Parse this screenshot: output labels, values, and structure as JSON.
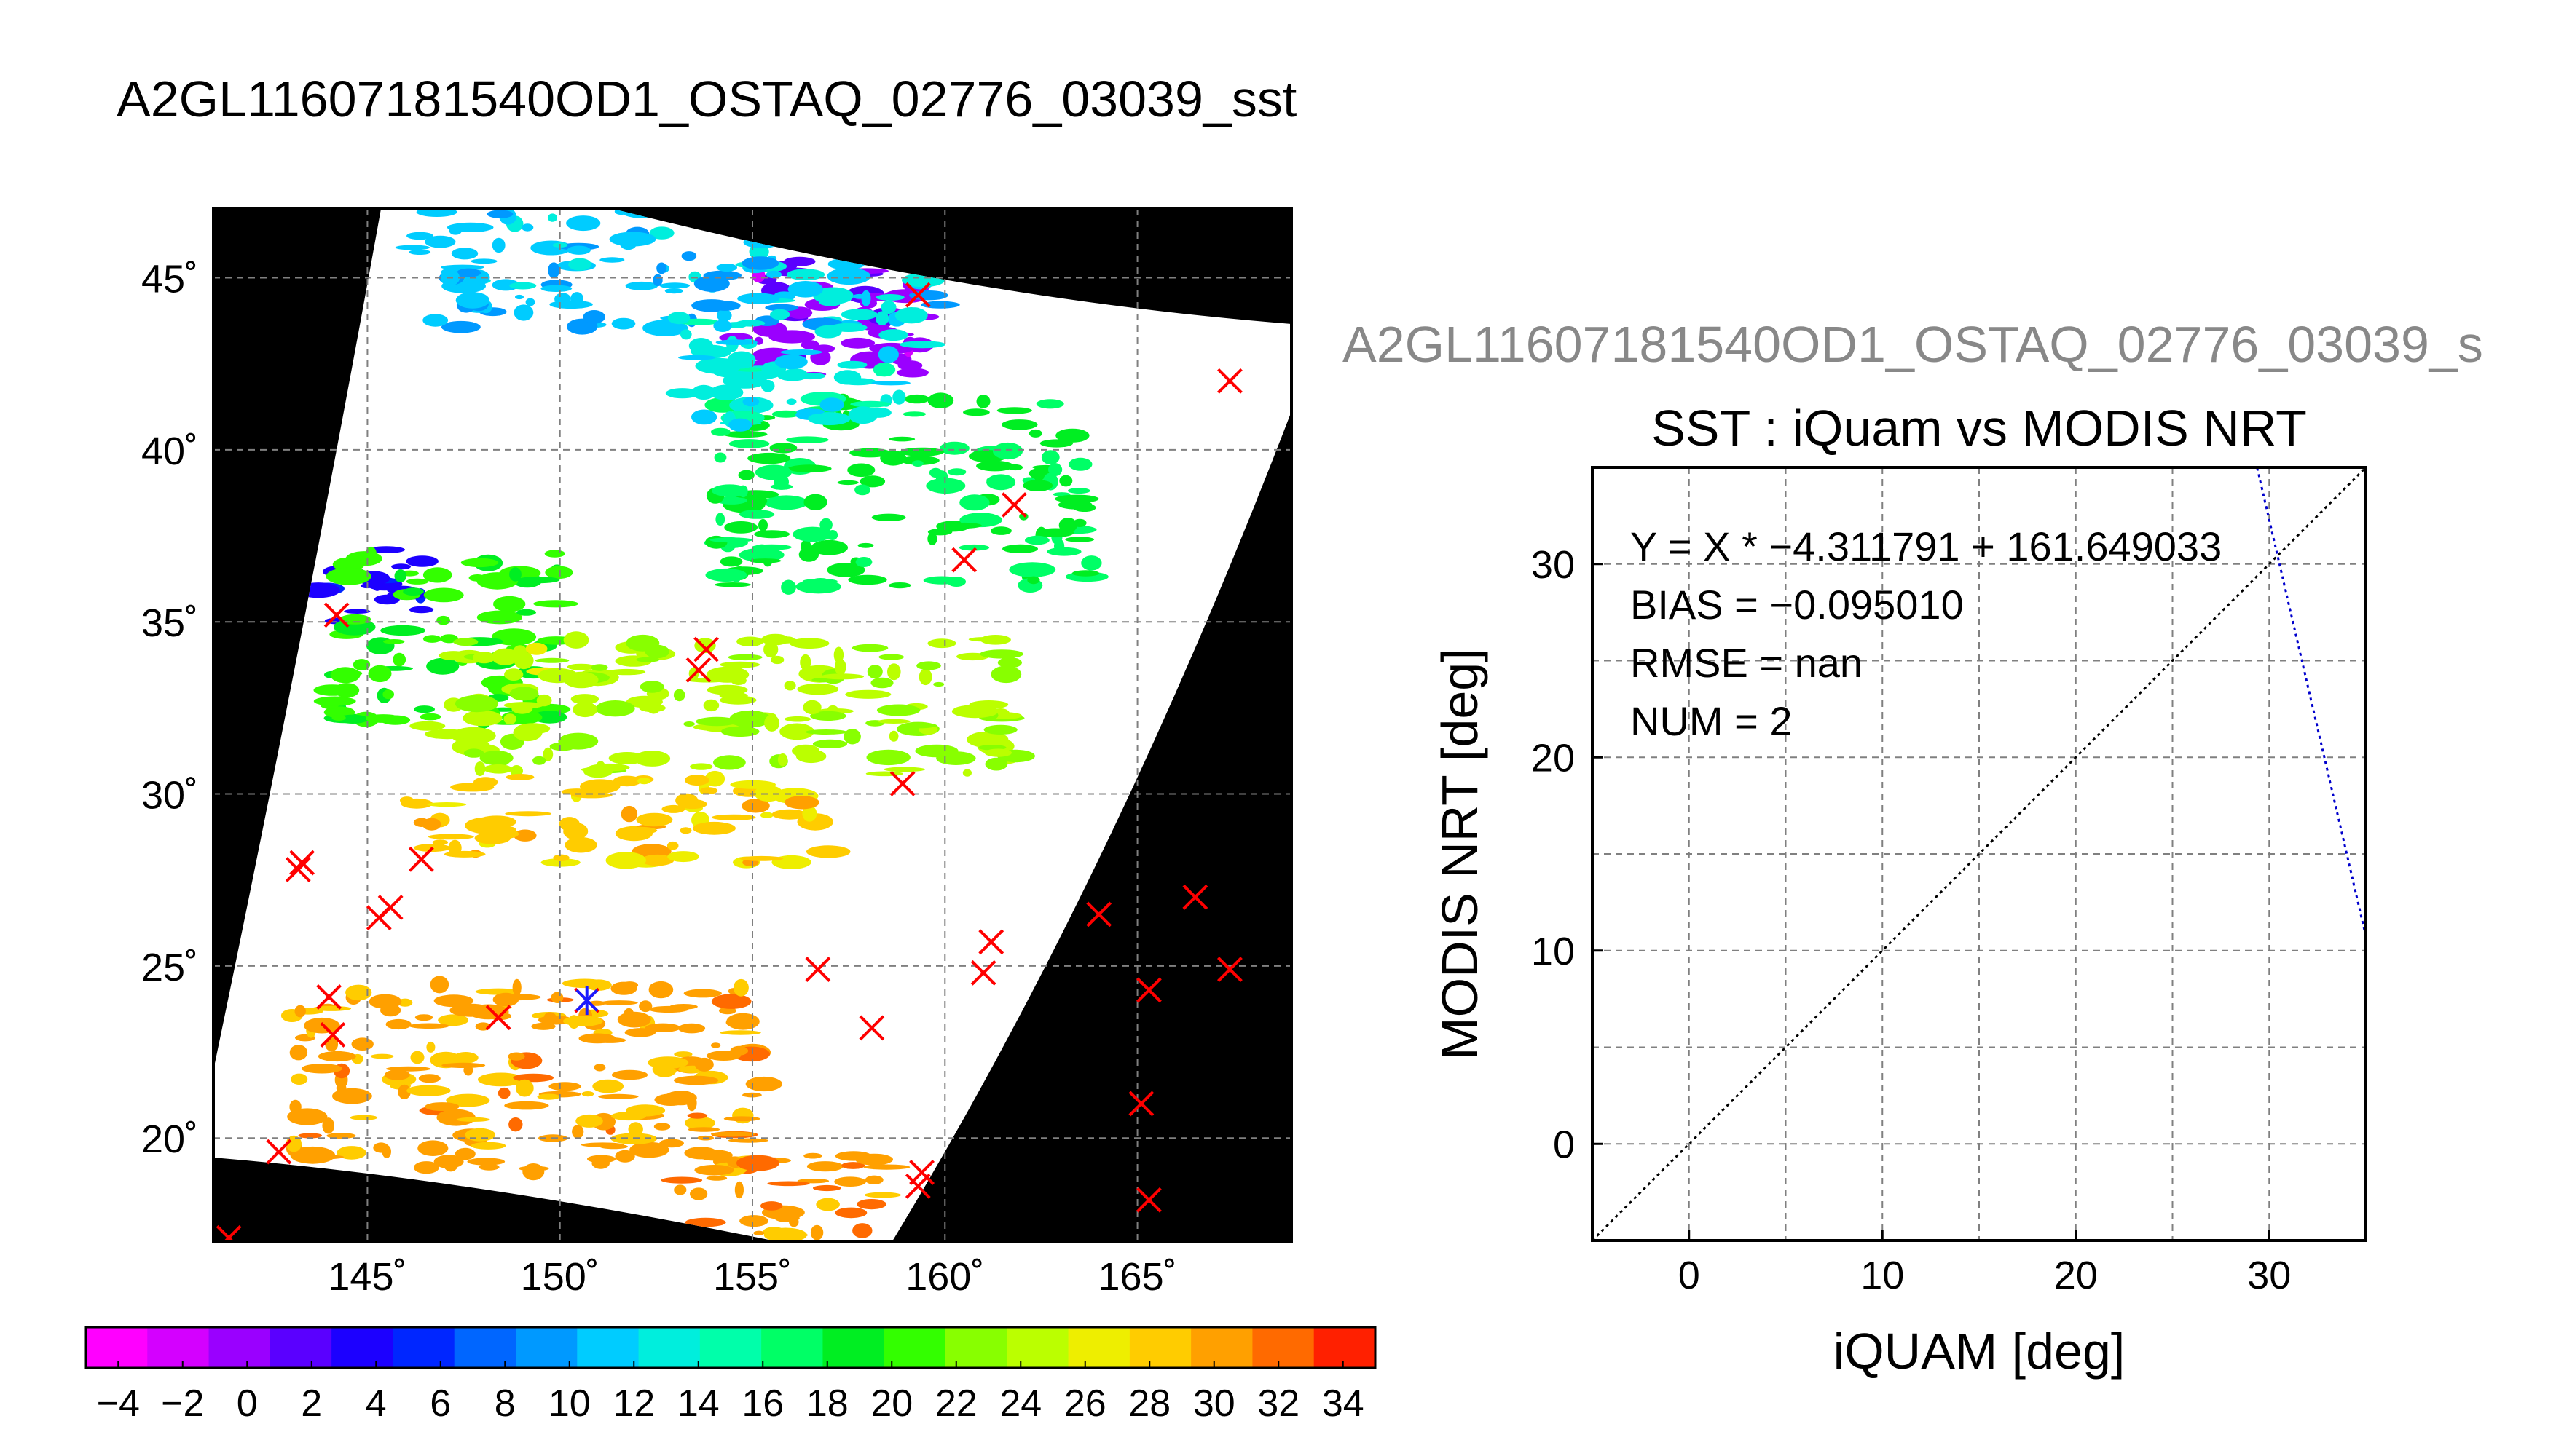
{
  "main_title": "A2GL11607181540OD1_OSTAQ_02776_03039_sst",
  "secondary_title": "A2GL11607181540OD1_OSTAQ_02776_03039_s",
  "map": {
    "lat_ticks": [
      20,
      25,
      30,
      35,
      40,
      45
    ],
    "lon_ticks": [
      145,
      150,
      155,
      160,
      165
    ],
    "lat_range": [
      17,
      47
    ],
    "lon_range": [
      141,
      169
    ],
    "degree_mark": "˚",
    "background": "#000000",
    "swath_color": "#ffffff",
    "grid": true,
    "buoy_marker_color": "#ff0000",
    "matched_marker_color": "#1a1aff",
    "buoy_markers": [
      [
        159.3,
        44.5
      ],
      [
        167.4,
        42.0
      ],
      [
        161.8,
        38.4
      ],
      [
        160.5,
        36.8
      ],
      [
        144.2,
        35.2
      ],
      [
        153.8,
        34.2
      ],
      [
        153.6,
        33.6
      ],
      [
        158.9,
        30.3
      ],
      [
        143.3,
        28.0
      ],
      [
        143.2,
        27.8
      ],
      [
        146.4,
        28.1
      ],
      [
        145.6,
        26.7
      ],
      [
        145.3,
        26.4
      ],
      [
        161.2,
        25.7
      ],
      [
        161.0,
        24.8
      ],
      [
        164.0,
        26.5
      ],
      [
        166.5,
        27.0
      ],
      [
        167.4,
        24.9
      ],
      [
        165.3,
        24.3
      ],
      [
        156.7,
        24.9
      ],
      [
        158.1,
        23.2
      ],
      [
        148.4,
        23.5
      ],
      [
        150.7,
        24.0
      ],
      [
        144.0,
        24.1
      ],
      [
        144.1,
        23.0
      ],
      [
        165.1,
        21.0
      ],
      [
        165.3,
        18.2
      ],
      [
        159.4,
        19.0
      ],
      [
        159.3,
        18.6
      ],
      [
        142.7,
        19.6
      ],
      [
        141.4,
        17.1
      ]
    ],
    "matched_markers": [
      [
        150.7,
        24.0
      ]
    ],
    "sst_regions": [
      {
        "name": "north-purple",
        "value": 0,
        "lon": [
          154.5,
          159.5
        ],
        "lat": [
          42.0,
          45.5
        ]
      },
      {
        "name": "north-cyan",
        "value": 11,
        "lon": [
          146.0,
          160.0
        ],
        "lat": [
          43.5,
          47.0
        ]
      },
      {
        "name": "blue-patch",
        "value": 4,
        "lon": [
          143.7,
          146.5
        ],
        "lat": [
          34.9,
          37.2
        ]
      },
      {
        "name": "mid-green",
        "value": 18,
        "lon": [
          154.0,
          164.0
        ],
        "lat": [
          36.0,
          41.5
        ]
      },
      {
        "name": "mid-cyan",
        "value": 13,
        "lon": [
          153.0,
          159.5
        ],
        "lat": [
          40.5,
          44.0
        ]
      },
      {
        "name": "west-green",
        "value": 20,
        "lon": [
          144.0,
          150.0
        ],
        "lat": [
          32.0,
          37.0
        ]
      },
      {
        "name": "central-yellowgreen",
        "value": 24,
        "lon": [
          146.5,
          162.0
        ],
        "lat": [
          30.5,
          34.5
        ]
      },
      {
        "name": "central-yellow",
        "value": 28,
        "lon": [
          146.0,
          157.0
        ],
        "lat": [
          28.0,
          30.5
        ]
      },
      {
        "name": "south-orange",
        "value": 30,
        "lon": [
          143.0,
          155.5
        ],
        "lat": [
          19.0,
          24.5
        ]
      },
      {
        "name": "south-orange-tail",
        "value": 30,
        "lon": [
          153.0,
          158.5
        ],
        "lat": [
          17.0,
          19.5
        ]
      }
    ]
  },
  "colorbar": {
    "ticks": [
      "−4",
      "−2",
      "0",
      "2",
      "4",
      "6",
      "8",
      "10",
      "12",
      "14",
      "16",
      "18",
      "20",
      "22",
      "24",
      "26",
      "28",
      "30",
      "32",
      "34"
    ],
    "min": -5,
    "max": 35,
    "colors": [
      "#ff00ff",
      "#d400ff",
      "#9a00ff",
      "#5a00ff",
      "#1c00ff",
      "#0026ff",
      "#0066ff",
      "#0099ff",
      "#00ccff",
      "#00eedd",
      "#00ffaa",
      "#00ff66",
      "#00ee22",
      "#33ff00",
      "#88ff00",
      "#bbff00",
      "#eeee00",
      "#ffcc00",
      "#ffa000",
      "#ff6a00",
      "#ff2000"
    ]
  },
  "chart_data": {
    "type": "scatter",
    "title": "SST : iQuam vs MODIS NRT",
    "xlabel": "iQUAM [deg]",
    "ylabel": "MODIS NRT [deg]",
    "xlim": [
      -5,
      35
    ],
    "ylim": [
      -5,
      35
    ],
    "xticks": [
      0,
      10,
      20,
      30
    ],
    "yticks": [
      0,
      10,
      20,
      30
    ],
    "grid": true,
    "annotations": [
      "Y = X * −4.311791 + 161.649033",
      "BIAS = −0.095010",
      "RMSE = nan",
      "NUM = 2"
    ],
    "series": [
      {
        "kind": "identity-line",
        "color": "#000000",
        "x": [
          -5,
          35
        ],
        "y": [
          -5,
          35
        ]
      },
      {
        "kind": "regression-line",
        "color": "#0000cc",
        "slope": -4.311791,
        "intercept": 161.649033
      }
    ]
  }
}
